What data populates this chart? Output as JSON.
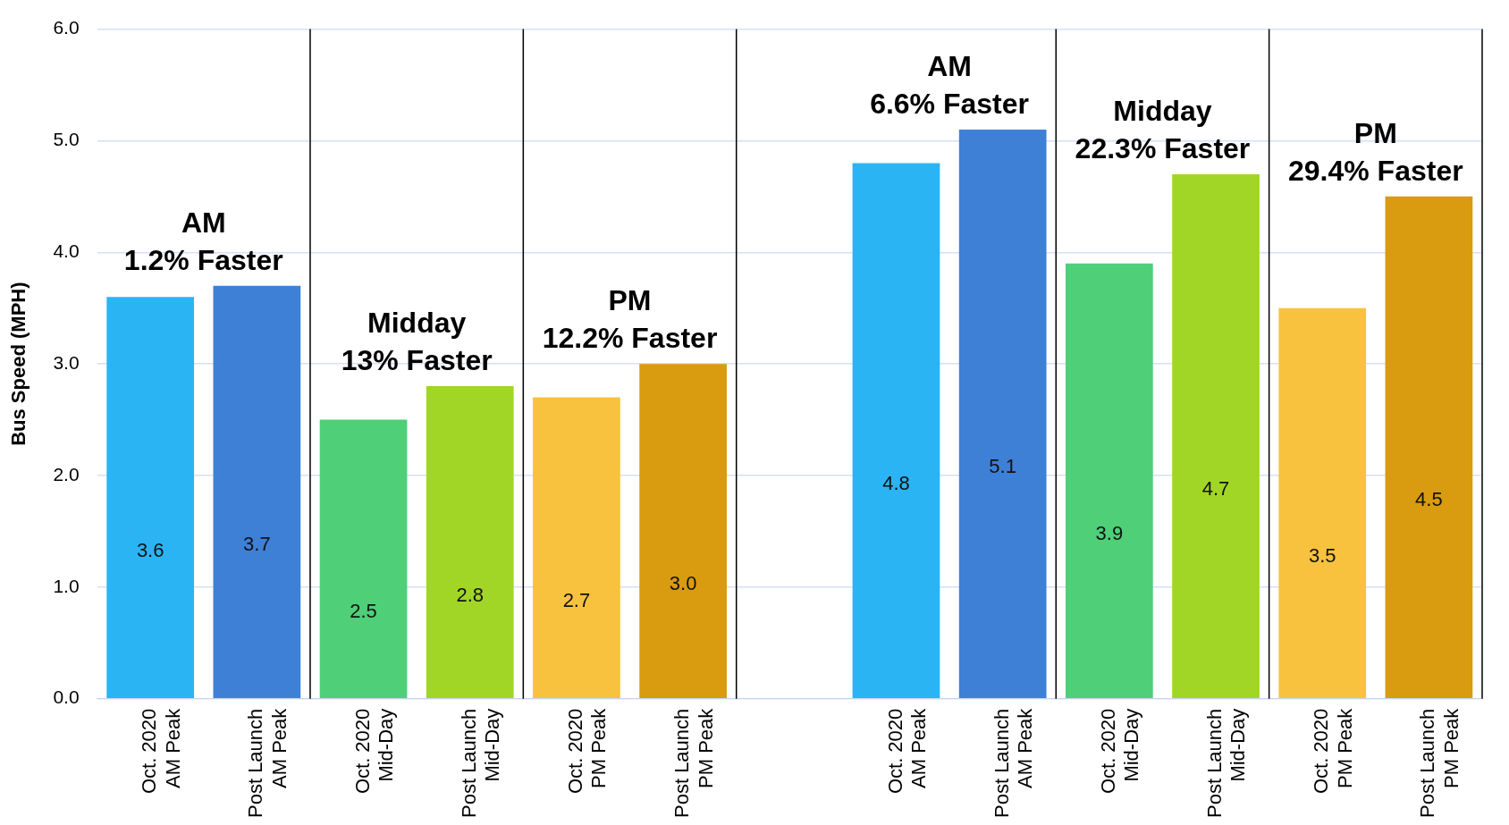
{
  "chart_data": {
    "type": "bar",
    "ylabel": "Bus Speed (MPH)",
    "categories": [
      "Oct. 2020\nAM Peak",
      "Post Launch\nAM Peak",
      "Oct. 2020\nMid-Day",
      "Post Launch\nMid-Day",
      "Oct. 2020\nPM Peak",
      "Post Launch\nPM Peak",
      null,
      "Oct. 2020\nAM Peak",
      "Post Launch\nAM Peak",
      "Oct. 2020\nMid-Day",
      "Post Launch\nMid-Day",
      "Oct. 2020\nPM Peak",
      "Post Launch\nPM Peak"
    ],
    "values": [
      3.6,
      3.7,
      2.5,
      2.8,
      2.7,
      3.0,
      null,
      4.8,
      5.1,
      3.9,
      4.7,
      3.5,
      4.5
    ],
    "colors": [
      "#2ab4f4",
      "#3d80d6",
      "#4fcf78",
      "#a2d626",
      "#f8c23e",
      "#d99b10",
      null,
      "#2ab4f4",
      "#3d80d6",
      "#4fcf78",
      "#a2d626",
      "#f8c23e",
      "#d99b10"
    ],
    "value_labels": [
      "3.6",
      "3.7",
      "2.5",
      "2.8",
      "2.7",
      "3.0",
      null,
      "4.8",
      "5.1",
      "3.9",
      "4.7",
      "3.5",
      "4.5"
    ],
    "ylim": [
      0,
      6
    ],
    "yticks": [
      {
        "value": 0,
        "label": "0.0"
      },
      {
        "value": 1,
        "label": "1.0"
      },
      {
        "value": 2,
        "label": "2.0"
      },
      {
        "value": 3,
        "label": "3.0"
      },
      {
        "value": 4,
        "label": "4.0"
      },
      {
        "value": 5,
        "label": "5.0"
      },
      {
        "value": 6,
        "label": "6.0"
      }
    ],
    "grid": "y",
    "legend": false,
    "annotations": [
      "AM\n1.2% Faster",
      "Midday\n13% Faster",
      "PM\n12.2% Faster",
      "AM\n6.6% Faster",
      "Midday\n22.3% Faster",
      "PM\n29.4% Faster"
    ]
  }
}
